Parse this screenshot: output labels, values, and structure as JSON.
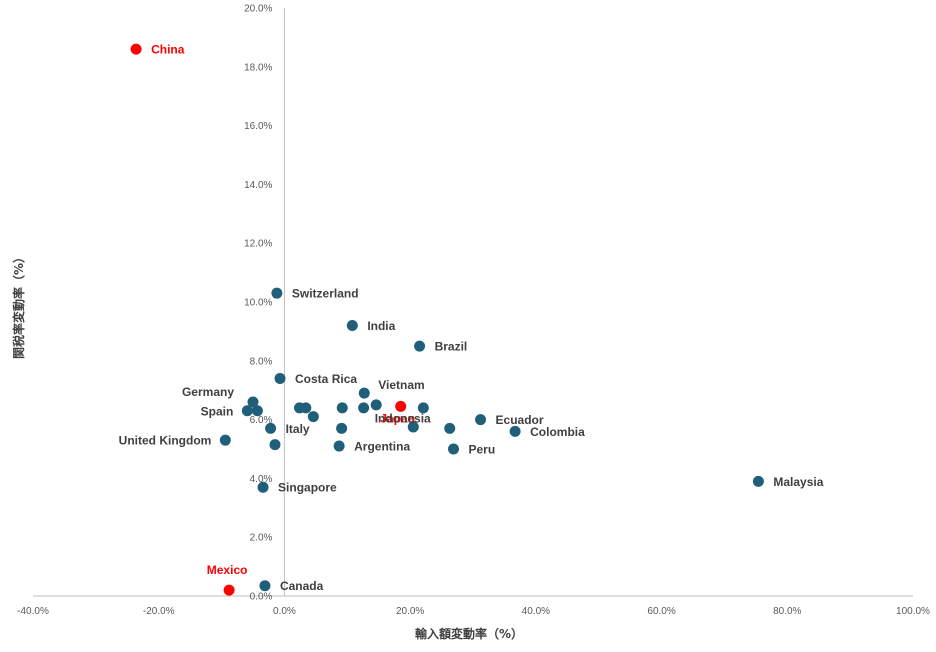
{
  "chart_data": {
    "type": "scatter",
    "title": "",
    "xlabel": "輸入額変動率（%）",
    "ylabel": "関税率変動率（%）",
    "xlim": [
      -40,
      100
    ],
    "ylim": [
      0,
      20
    ],
    "x_ticks": [
      "-40.0%",
      "-20.0%",
      "0.0%",
      "20.0%",
      "40.0%",
      "60.0%",
      "80.0%",
      "100.0%"
    ],
    "y_ticks": [
      "0.0%",
      "2.0%",
      "4.0%",
      "6.0%",
      "8.0%",
      "10.0%",
      "12.0%",
      "14.0%",
      "16.0%",
      "18.0%",
      "20.0%"
    ],
    "grid": false,
    "colors": {
      "default": "#1f5f7a",
      "highlight": "#ff0000"
    },
    "points": [
      {
        "x": -23.6,
        "y": 18.6,
        "label": "China",
        "highlight": true,
        "label_pos": "right"
      },
      {
        "x": -1.2,
        "y": 10.3,
        "label": "Switzerland",
        "highlight": false,
        "label_pos": "right"
      },
      {
        "x": 10.8,
        "y": 9.2,
        "label": "India",
        "highlight": false,
        "label_pos": "right"
      },
      {
        "x": 21.5,
        "y": 8.5,
        "label": "Brazil",
        "highlight": false,
        "label_pos": "right"
      },
      {
        "x": -0.7,
        "y": 7.4,
        "label": "Costa Rica",
        "highlight": false,
        "label_pos": "right"
      },
      {
        "x": 12.7,
        "y": 6.9,
        "label": "Vietnam",
        "highlight": false,
        "label_pos": "upper-right"
      },
      {
        "x": -5.0,
        "y": 6.6,
        "label": "Germany",
        "highlight": false,
        "label_pos": "upper-left"
      },
      {
        "x": -5.9,
        "y": 6.3,
        "label": "Spain",
        "highlight": false,
        "label_pos": "left"
      },
      {
        "x": 18.5,
        "y": 6.45,
        "label": "Japan",
        "highlight": true,
        "label_pos": "below"
      },
      {
        "x": 26.3,
        "y": 5.7,
        "label": "Indonesia",
        "highlight": false,
        "label_pos": "upper-left"
      },
      {
        "x": 31.2,
        "y": 6.0,
        "label": "Ecuador",
        "highlight": false,
        "label_pos": "right"
      },
      {
        "x": 36.7,
        "y": 5.6,
        "label": "Colombia",
        "highlight": false,
        "label_pos": "right"
      },
      {
        "x": -2.2,
        "y": 5.7,
        "label": "Italy",
        "highlight": false,
        "label_pos": "right"
      },
      {
        "x": -9.4,
        "y": 5.3,
        "label": "United Kingdom",
        "highlight": false,
        "label_pos": "left"
      },
      {
        "x": 8.7,
        "y": 5.1,
        "label": "Argentina",
        "highlight": false,
        "label_pos": "right"
      },
      {
        "x": 26.9,
        "y": 5.0,
        "label": "Peru",
        "highlight": false,
        "label_pos": "right"
      },
      {
        "x": 75.4,
        "y": 3.9,
        "label": "Malaysia",
        "highlight": false,
        "label_pos": "right"
      },
      {
        "x": -3.4,
        "y": 3.7,
        "label": "Singapore",
        "highlight": false,
        "label_pos": "right"
      },
      {
        "x": -8.8,
        "y": 0.2,
        "label": "Mexico",
        "highlight": true,
        "label_pos": "above"
      },
      {
        "x": -3.1,
        "y": 0.35,
        "label": "Canada",
        "highlight": false,
        "label_pos": "right"
      },
      {
        "x": -4.3,
        "y": 6.3,
        "label": "",
        "highlight": false
      },
      {
        "x": 2.4,
        "y": 6.4,
        "label": "",
        "highlight": false
      },
      {
        "x": 3.4,
        "y": 6.4,
        "label": "",
        "highlight": false
      },
      {
        "x": 4.6,
        "y": 6.1,
        "label": "",
        "highlight": false
      },
      {
        "x": 9.2,
        "y": 6.4,
        "label": "",
        "highlight": false
      },
      {
        "x": 12.6,
        "y": 6.4,
        "label": "",
        "highlight": false
      },
      {
        "x": 14.6,
        "y": 6.5,
        "label": "",
        "highlight": false
      },
      {
        "x": 22.1,
        "y": 6.4,
        "label": "",
        "highlight": false
      },
      {
        "x": 20.5,
        "y": 5.75,
        "label": "",
        "highlight": false
      },
      {
        "x": 9.1,
        "y": 5.7,
        "label": "",
        "highlight": false
      },
      {
        "x": -1.5,
        "y": 5.15,
        "label": "",
        "highlight": false
      }
    ]
  }
}
